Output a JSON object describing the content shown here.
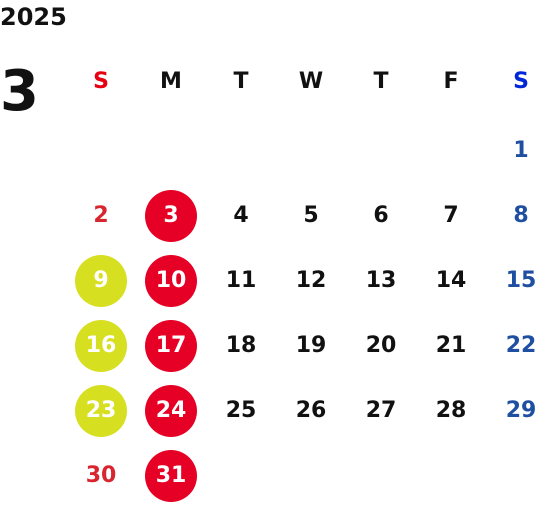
{
  "calendar": {
    "year": "2025",
    "month": "3",
    "weekdays": [
      {
        "label": "S",
        "color": "#e60012"
      },
      {
        "label": "M",
        "color": "#111111"
      },
      {
        "label": "T",
        "color": "#111111"
      },
      {
        "label": "W",
        "color": "#111111"
      },
      {
        "label": "T",
        "color": "#111111"
      },
      {
        "label": "F",
        "color": "#111111"
      },
      {
        "label": "S",
        "color": "#0026d9"
      }
    ],
    "colors": {
      "sunday_text": "#d7262f",
      "saturday_text": "#1f4fa0",
      "weekday_text": "#111111",
      "red_circle": "#e60026",
      "yellow_circle": "#d7df21",
      "circle_text": "#ffffff"
    },
    "weeks": [
      [
        {
          "text": ""
        },
        {
          "text": ""
        },
        {
          "text": ""
        },
        {
          "text": ""
        },
        {
          "text": ""
        },
        {
          "text": ""
        },
        {
          "text": "1"
        }
      ],
      [
        {
          "text": "2"
        },
        {
          "text": "3",
          "highlight": "red"
        },
        {
          "text": "4"
        },
        {
          "text": "5"
        },
        {
          "text": "6"
        },
        {
          "text": "7"
        },
        {
          "text": "8"
        }
      ],
      [
        {
          "text": "9",
          "highlight": "yellow"
        },
        {
          "text": "10",
          "highlight": "red"
        },
        {
          "text": "11"
        },
        {
          "text": "12"
        },
        {
          "text": "13"
        },
        {
          "text": "14"
        },
        {
          "text": "15"
        }
      ],
      [
        {
          "text": "16",
          "highlight": "yellow"
        },
        {
          "text": "17",
          "highlight": "red"
        },
        {
          "text": "18"
        },
        {
          "text": "19"
        },
        {
          "text": "20"
        },
        {
          "text": "21"
        },
        {
          "text": "22"
        }
      ],
      [
        {
          "text": "23",
          "highlight": "yellow"
        },
        {
          "text": "24",
          "highlight": "red"
        },
        {
          "text": "25"
        },
        {
          "text": "26"
        },
        {
          "text": "27"
        },
        {
          "text": "28"
        },
        {
          "text": "29"
        }
      ],
      [
        {
          "text": "30"
        },
        {
          "text": "31",
          "highlight": "red"
        },
        {
          "text": ""
        },
        {
          "text": ""
        },
        {
          "text": ""
        },
        {
          "text": ""
        },
        {
          "text": ""
        }
      ]
    ]
  }
}
